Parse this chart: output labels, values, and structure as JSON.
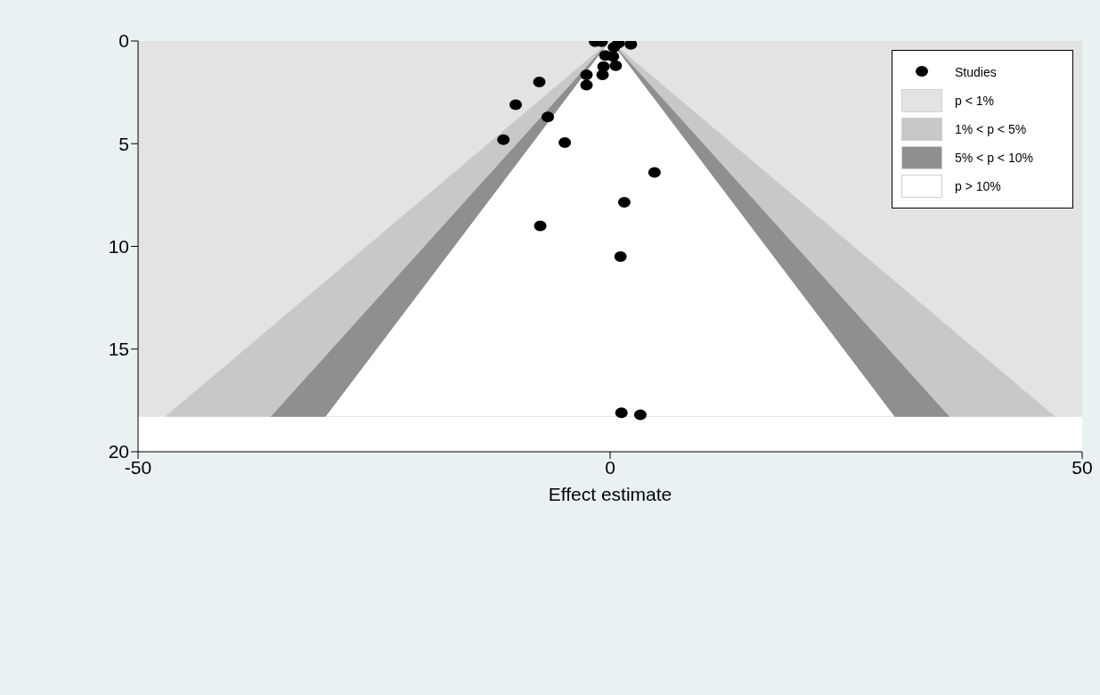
{
  "chart_data": {
    "type": "scatter",
    "xlabel": "Effect estimate",
    "xlim": [
      -50,
      50
    ],
    "xticks": [
      -50,
      0,
      50
    ],
    "ylim": [
      20,
      0
    ],
    "yticks": [
      0,
      5,
      10,
      15,
      20
    ],
    "grid": false,
    "legend": "top right",
    "bands": [
      {
        "axis": "y",
        "from": 0,
        "to": 18.3,
        "label": "p < 1%",
        "color": "#e3e3e3"
      }
    ],
    "series": [
      {
        "name": "Studies",
        "marker": "circle",
        "color": "#000000",
        "x": [
          -1.6,
          -0.9,
          0.9,
          2.2,
          0.4,
          -0.5,
          0.3,
          0.6,
          -0.7,
          -0.8,
          -2.5,
          -7.5,
          -2.5,
          -10,
          -6.6,
          -11.3,
          -4.8,
          4.7,
          1.5,
          -7.4,
          1.1,
          1.2,
          3.2
        ],
        "values": [
          0.03,
          0.03,
          0.1,
          0.16,
          0.3,
          0.7,
          0.75,
          1.2,
          1.25,
          1.65,
          1.65,
          2.0,
          2.15,
          3.1,
          3.7,
          4.8,
          4.95,
          6.4,
          7.85,
          9.0,
          10.5,
          18.1,
          18.2
        ]
      },
      {
        "name": "1% < p < 5%",
        "type": "area",
        "color": "#c8c8c8",
        "x": [
          -47.1,
          0,
          47.1
        ],
        "values": [
          18.3,
          0,
          18.3
        ]
      },
      {
        "name": "5% < p < 10%",
        "type": "area",
        "color": "#8f8f8f",
        "x": [
          -35.9,
          0,
          35.9
        ],
        "values": [
          18.3,
          0,
          18.3
        ]
      },
      {
        "name": "p > 10%",
        "type": "area",
        "color": "#ffffff",
        "x": [
          -30.1,
          0,
          30.1
        ],
        "values": [
          18.3,
          0,
          18.3
        ]
      }
    ]
  }
}
